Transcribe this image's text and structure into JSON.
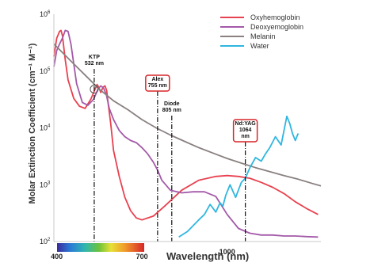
{
  "chart_data": {
    "type": "line",
    "title": "",
    "xlabel": "Wavelength (nm)",
    "ylabel": "Molar Extinction Coefficient (cm⁻¹ M⁻¹)",
    "x_scale": "linear",
    "y_scale": "log",
    "xlim": [
      390,
      1330
    ],
    "ylim": [
      100,
      1000000
    ],
    "x_ticks": [
      {
        "value": 400,
        "label": "400"
      },
      {
        "value": 700,
        "label": "700"
      },
      {
        "value": 1000,
        "label": "1000"
      }
    ],
    "y_ticks": [
      {
        "value": 100,
        "base": "10",
        "exp": "2"
      },
      {
        "value": 1000,
        "base": "10",
        "exp": "3"
      },
      {
        "value": 10000,
        "base": "10",
        "exp": "4"
      },
      {
        "value": 100000,
        "base": "10",
        "exp": "5"
      },
      {
        "value": 1000000,
        "base": "10",
        "exp": "6"
      }
    ],
    "spectrum_bar": {
      "from": 400,
      "to": 700
    },
    "legend_position": "top-right",
    "series": [
      {
        "name": "Oxyhemoglobin",
        "color": "#e8414f",
        "x": [
          390,
          400,
          410,
          415,
          420,
          430,
          440,
          460,
          480,
          500,
          520,
          535,
          542,
          548,
          555,
          563,
          570,
          576,
          580,
          590,
          600,
          620,
          640,
          660,
          680,
          700,
          740,
          780,
          840,
          900,
          960,
          1000,
          1040,
          1080,
          1120,
          1160,
          1200,
          1240,
          1280,
          1320
        ],
        "y": [
          180000,
          380000,
          500000,
          520000,
          420000,
          160000,
          70000,
          33000,
          24000,
          22000,
          32000,
          48000,
          58000,
          52000,
          42000,
          52000,
          55000,
          45000,
          30000,
          12000,
          4000,
          1400,
          600,
          350,
          260,
          240,
          280,
          420,
          800,
          1200,
          1400,
          1450,
          1400,
          1300,
          1100,
          900,
          700,
          500,
          380,
          300
        ]
      },
      {
        "name": "Deoxyemoglobin",
        "color": "#a35aa8",
        "x": [
          390,
          400,
          410,
          420,
          430,
          440,
          450,
          470,
          490,
          510,
          530,
          545,
          555,
          565,
          575,
          585,
          600,
          620,
          640,
          660,
          680,
          700,
          720,
          740,
          755,
          770,
          800,
          840,
          880,
          920,
          960,
          1000,
          1040,
          1080,
          1120,
          1160,
          1200,
          1240,
          1280,
          1320
        ],
        "y": [
          120000,
          230000,
          300000,
          380000,
          520000,
          500000,
          300000,
          60000,
          28000,
          25000,
          32000,
          48000,
          55000,
          50000,
          38000,
          22000,
          14000,
          9000,
          7000,
          6000,
          5500,
          4500,
          3500,
          2500,
          1800,
          1200,
          800,
          720,
          750,
          750,
          620,
          300,
          170,
          140,
          130,
          130,
          125,
          125,
          122,
          120
        ]
      },
      {
        "name": "Melanin",
        "color": "#8a8080",
        "x": [
          390,
          450,
          500,
          550,
          600,
          650,
          700,
          750,
          800,
          850,
          900,
          950,
          1000,
          1050,
          1100,
          1150,
          1200,
          1250,
          1300,
          1330
        ],
        "y": [
          300000,
          150000,
          85000,
          48000,
          30000,
          21000,
          14000,
          10000,
          7500,
          5800,
          4500,
          3600,
          2900,
          2400,
          2000,
          1700,
          1450,
          1250,
          1050,
          950
        ]
      },
      {
        "name": "Water",
        "color": "#2fb6e0",
        "x": [
          830,
          860,
          880,
          900,
          920,
          940,
          960,
          975,
          985,
          995,
          1010,
          1030,
          1050,
          1064,
          1080,
          1100,
          1120,
          1135,
          1150,
          1170,
          1190,
          1200,
          1210,
          1220,
          1230,
          1240,
          1250
        ],
        "y": [
          120,
          150,
          190,
          240,
          300,
          450,
          330,
          480,
          420,
          650,
          1000,
          600,
          1100,
          1300,
          2000,
          3000,
          2600,
          3500,
          4500,
          7000,
          5000,
          9000,
          16000,
          12000,
          8000,
          6000,
          8000
        ]
      }
    ],
    "annotations": [
      {
        "lines": [
          "KTP",
          "532 nm"
        ],
        "wavelength": 532,
        "boxed": false
      },
      {
        "lines": [
          "Alex",
          "755 nm"
        ],
        "wavelength": 755,
        "boxed": true
      },
      {
        "lines": [
          "Diode",
          "805 nm"
        ],
        "wavelength": 805,
        "boxed": false
      },
      {
        "lines": [
          "Nd:YAG",
          "1064",
          "nm"
        ],
        "wavelength": 1064,
        "boxed": true
      }
    ]
  }
}
